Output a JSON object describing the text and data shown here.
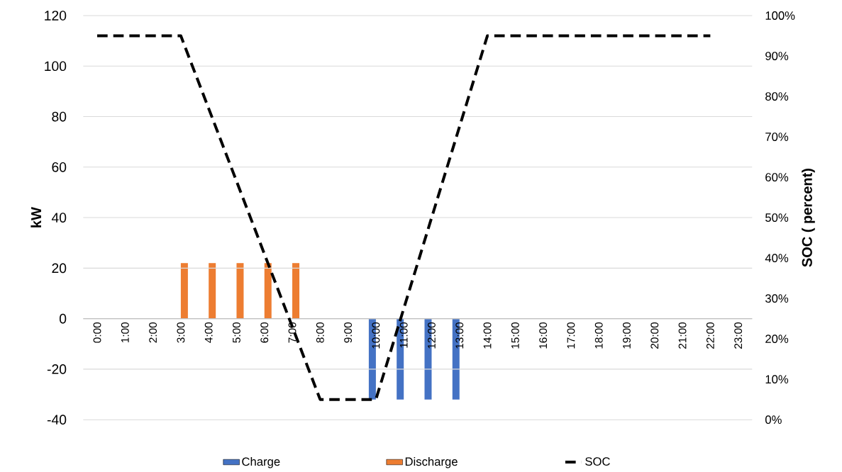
{
  "chart_data": {
    "type": "bar",
    "categories": [
      "0:00",
      "1:00",
      "2:00",
      "3:00",
      "4:00",
      "5:00",
      "6:00",
      "7:00",
      "8:00",
      "9:00",
      "10:00",
      "11:00",
      "12:00",
      "13:00",
      "14:00",
      "15:00",
      "16:00",
      "17:00",
      "18:00",
      "19:00",
      "20:00",
      "21:00",
      "22:00",
      "23:00"
    ],
    "ylabel": "kW",
    "y2label": "SOC ( percent)",
    "ylim": [
      -40,
      120
    ],
    "yticks": [
      -40,
      -20,
      0,
      20,
      40,
      60,
      80,
      100,
      120
    ],
    "y2lim": [
      0,
      100
    ],
    "y2ticks": [
      {
        "value": 0,
        "label": "0%"
      },
      {
        "value": 10,
        "label": "10%"
      },
      {
        "value": 20,
        "label": "20%"
      },
      {
        "value": 30,
        "label": "30%"
      },
      {
        "value": 40,
        "label": "40%"
      },
      {
        "value": 50,
        "label": "50%"
      },
      {
        "value": 60,
        "label": "60%"
      },
      {
        "value": 70,
        "label": "70%"
      },
      {
        "value": 80,
        "label": "80%"
      },
      {
        "value": 90,
        "label": "90%"
      },
      {
        "value": 100,
        "label": "100%"
      }
    ],
    "grid": "y",
    "legend": "bottom",
    "series": [
      {
        "name": "Charge",
        "color": "#4472c4",
        "values": [
          null,
          null,
          null,
          null,
          null,
          null,
          null,
          null,
          null,
          null,
          -32,
          -32,
          -32,
          -32,
          null,
          null,
          null,
          null,
          null,
          null,
          null,
          null,
          null,
          null
        ]
      },
      {
        "name": "Discharge",
        "color": "#ed7d31",
        "values": [
          null,
          null,
          null,
          22,
          22,
          22,
          22,
          22,
          null,
          null,
          null,
          null,
          null,
          null,
          null,
          null,
          null,
          null,
          null,
          null,
          null,
          null,
          null,
          null
        ]
      },
      {
        "name": "SOC",
        "type": "line",
        "axis": "y2",
        "color": "#000000",
        "line_style": "dashed",
        "values": [
          95,
          95,
          95,
          95,
          77,
          59,
          41,
          23,
          5,
          5,
          5,
          27.5,
          50,
          72.5,
          95,
          95,
          95,
          95,
          95,
          95,
          95,
          95,
          95,
          null
        ]
      }
    ]
  }
}
